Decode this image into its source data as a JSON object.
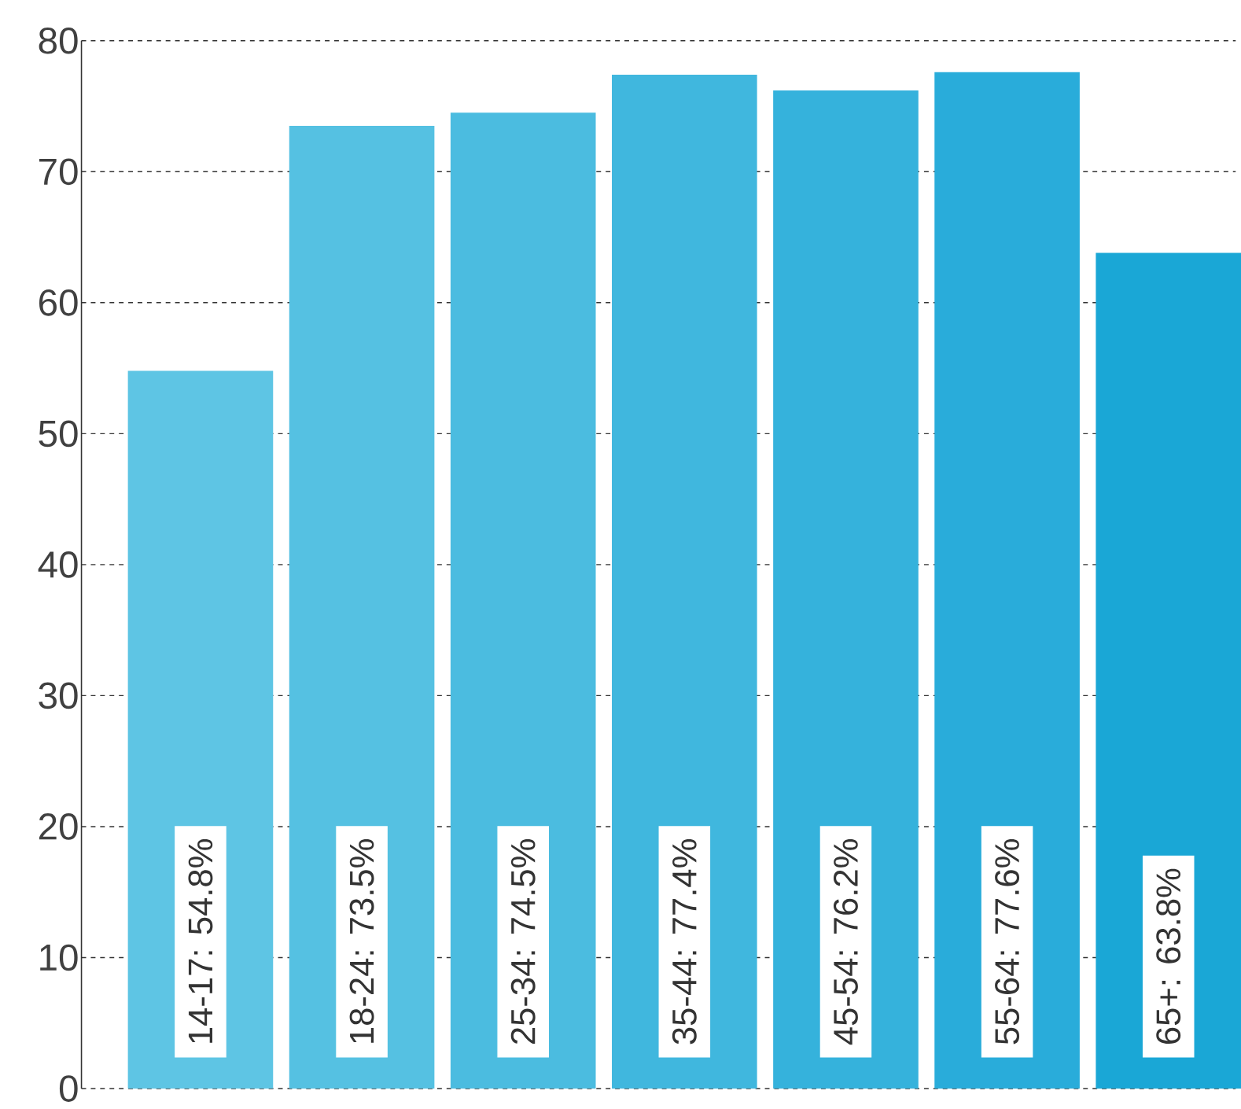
{
  "chart_data": {
    "type": "bar",
    "categories": [
      null,
      null,
      null,
      null,
      null,
      null,
      null
    ],
    "values": [
      54.8,
      73.5,
      74.5,
      77.4,
      76.2,
      77.6,
      63.8
    ],
    "value_labels": [
      "14-17: 54.8%",
      "18-24: 73.5%",
      "25-34: 74.5%",
      "35-44: 77.4%",
      "45-54: 76.2%",
      "55-64: 77.6%",
      "65+: 63.8%"
    ],
    "colors": [
      "#5ec5e4",
      "#55c1e2",
      "#4bbce0",
      "#40b7de",
      "#35b2dc",
      "#29acda",
      "#1aa7d6"
    ],
    "ylim": [
      0,
      80
    ],
    "yticks": [
      0,
      10,
      20,
      30,
      40,
      50,
      60,
      70,
      80
    ],
    "grid": "y",
    "tick_labels": "y"
  }
}
